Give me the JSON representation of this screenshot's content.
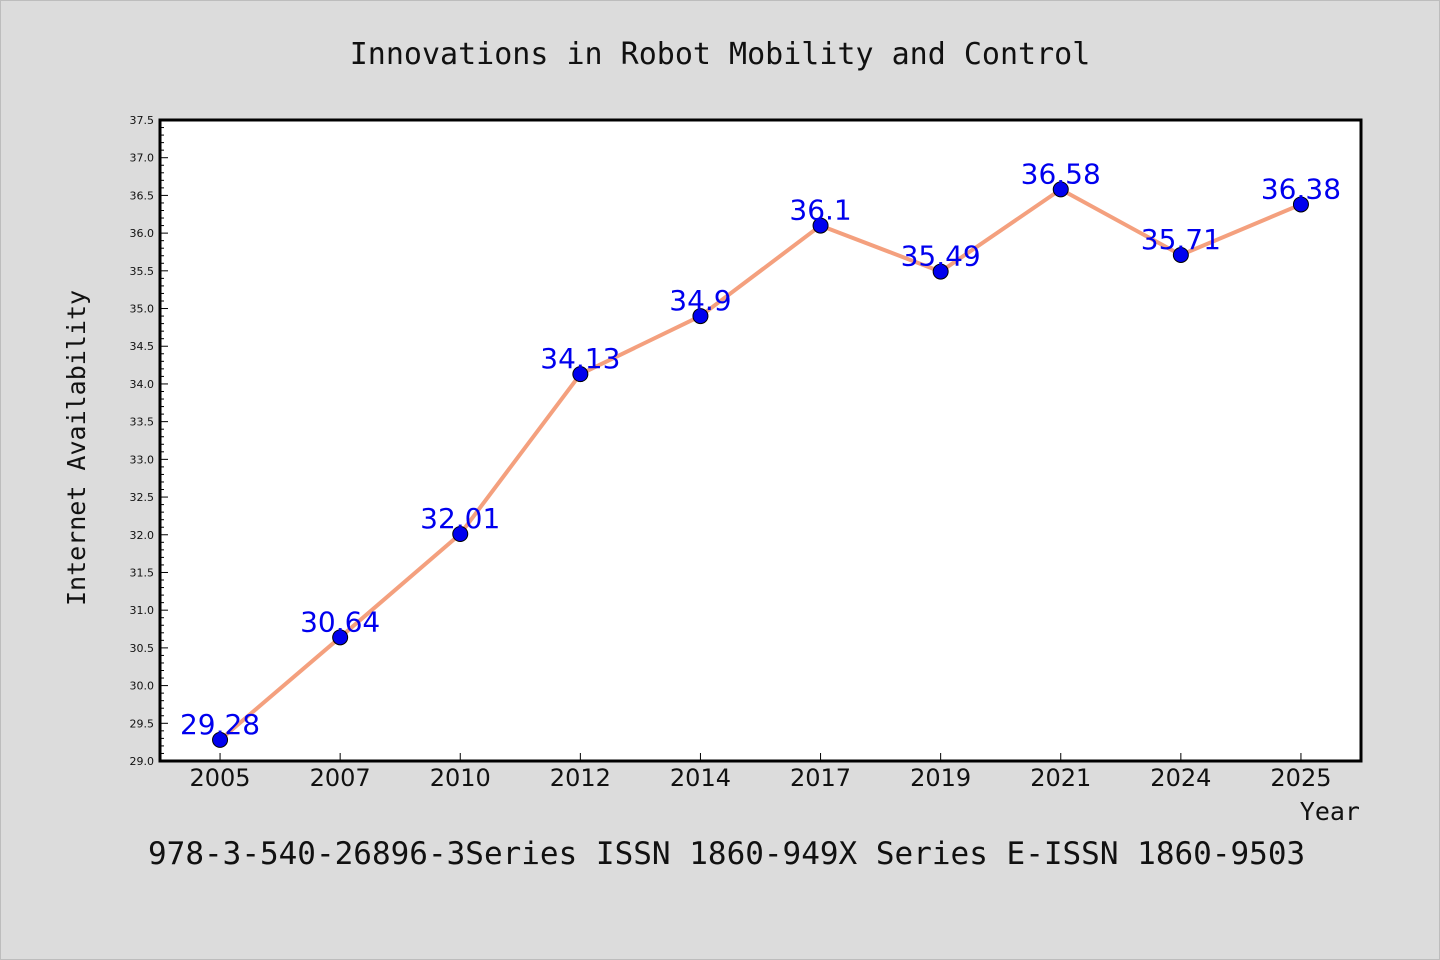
{
  "chart_data": {
    "type": "line",
    "title": "Innovations in Robot Mobility and Control",
    "xlabel": "Year",
    "ylabel": "Internet Availability",
    "categories": [
      "2005",
      "2007",
      "2010",
      "2012",
      "2014",
      "2017",
      "2019",
      "2021",
      "2024",
      "2025"
    ],
    "series": [
      {
        "values": [
          29.28,
          30.64,
          32.01,
          34.13,
          34.9,
          36.1,
          35.49,
          36.58,
          35.71,
          36.38
        ],
        "data_labels": [
          "29.28",
          "30.64",
          "32.01",
          "34.13",
          "34.9",
          "36.1",
          "35.49",
          "36.58",
          "35.71",
          "36.38"
        ]
      }
    ],
    "ylim": [
      29.0,
      37.5
    ],
    "y_ticks": [
      "29.0",
      "29.5",
      "30.0",
      "30.5",
      "31.0",
      "31.5",
      "32.0",
      "32.5",
      "33.0",
      "33.5",
      "34.0",
      "34.5",
      "35.0",
      "35.5",
      "36.0",
      "36.5",
      "37.0",
      "37.5"
    ],
    "grid": false,
    "legend": "none"
  },
  "footer_text": "978-3-540-26896-3Series ISSN 1860-949X Series E-ISSN 1860-9503",
  "colors": {
    "background": "#dcdcdc",
    "plot_background": "#ffffff",
    "line": "#f4a07e",
    "marker": "#0000ee",
    "data_label": "#0000ee"
  }
}
